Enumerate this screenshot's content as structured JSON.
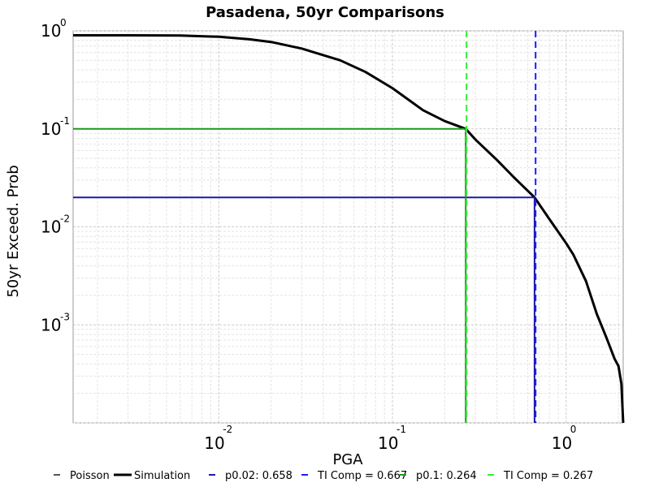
{
  "chart_data": {
    "type": "line",
    "title": "Pasadena, 50yr Comparisons",
    "xlabel": "PGA",
    "ylabel": "50yr Exceed. Prob",
    "x_scale": "log",
    "y_scale": "log",
    "xlim": [
      0.00145,
      2.13
    ],
    "ylim": [
      0.0001,
      1.0
    ],
    "x_ticks": [
      {
        "value": 0.01,
        "base": "10",
        "exp": "-2"
      },
      {
        "value": 0.1,
        "base": "10",
        "exp": "-1"
      },
      {
        "value": 1.0,
        "base": "10",
        "exp": "0"
      }
    ],
    "y_ticks": [
      {
        "value": 1.0,
        "base": "10",
        "exp": "0"
      },
      {
        "value": 0.1,
        "base": "10",
        "exp": "-1"
      },
      {
        "value": 0.01,
        "base": "10",
        "exp": "-2"
      },
      {
        "value": 0.001,
        "base": "10",
        "exp": "-3"
      }
    ],
    "grid": true,
    "legend_position": "bottom",
    "series": [
      {
        "name": "Poisson",
        "color": "#555555",
        "style": "dashed",
        "x": [],
        "y": []
      },
      {
        "name": "Simulation",
        "color": "#000000",
        "style": "solid",
        "x": [
          0.00145,
          0.003,
          0.006,
          0.01,
          0.015,
          0.02,
          0.03,
          0.05,
          0.07,
          0.1,
          0.15,
          0.2,
          0.264,
          0.3,
          0.4,
          0.5,
          0.658,
          0.8,
          1.0,
          1.1,
          1.3,
          1.5,
          1.7,
          1.9,
          2.0,
          2.08,
          2.13
        ],
        "y": [
          0.9,
          0.9,
          0.895,
          0.87,
          0.82,
          0.77,
          0.66,
          0.5,
          0.38,
          0.26,
          0.155,
          0.12,
          0.1,
          0.078,
          0.048,
          0.032,
          0.02,
          0.012,
          0.0068,
          0.0052,
          0.0028,
          0.0013,
          0.00075,
          0.00045,
          0.00038,
          0.00025,
          0.0001
        ]
      },
      {
        "name": "p0.02: 0.658",
        "color": "#1a1aa6",
        "style": "solid",
        "x": [
          0.00145,
          0.658,
          0.658
        ],
        "y": [
          0.02,
          0.02,
          0.0001
        ]
      },
      {
        "name": "TI Comp = 0.667",
        "color": "#1a1aff",
        "style": "dashed",
        "x": [
          0.667,
          0.667
        ],
        "y": [
          1.0,
          0.0001
        ]
      },
      {
        "name": "p0.1: 0.264",
        "color": "#1a9a1a",
        "style": "solid",
        "x": [
          0.00145,
          0.264,
          0.264
        ],
        "y": [
          0.1,
          0.1,
          0.0001
        ]
      },
      {
        "name": "TI Comp = 0.267",
        "color": "#33ee33",
        "style": "dashed",
        "x": [
          0.267,
          0.267
        ],
        "y": [
          1.0,
          0.0001
        ]
      }
    ]
  }
}
